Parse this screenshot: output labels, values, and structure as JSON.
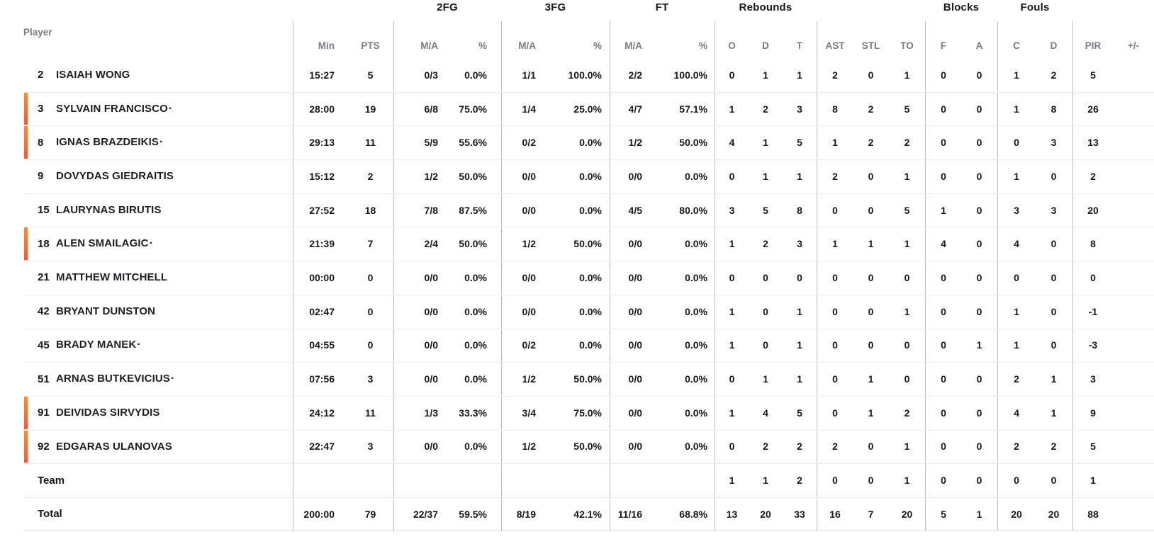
{
  "header": {
    "player_label": "Player",
    "groups": [
      "2FG",
      "3FG",
      "FT",
      "Rebounds",
      "Blocks",
      "Fouls"
    ],
    "cols": [
      "Min",
      "PTS",
      "M/A",
      "%",
      "M/A",
      "%",
      "M/A",
      "%",
      "O",
      "D",
      "T",
      "AST",
      "STL",
      "TO",
      "F",
      "A",
      "C",
      "D",
      "PIR",
      "+/-"
    ]
  },
  "starter_marker": "·",
  "players": [
    {
      "number": "2",
      "first": "ISAIAH",
      "last": "WONG",
      "starter": false,
      "on_court": false,
      "stats": [
        "15:27",
        "5",
        "0/3",
        "0.0%",
        "1/1",
        "100.0%",
        "2/2",
        "100.0%",
        "0",
        "1",
        "1",
        "2",
        "0",
        "1",
        "0",
        "0",
        "1",
        "2",
        "5",
        ""
      ]
    },
    {
      "number": "3",
      "first": "SYLVAIN",
      "last": "FRANCISCO",
      "starter": true,
      "on_court": true,
      "stats": [
        "28:00",
        "19",
        "6/8",
        "75.0%",
        "1/4",
        "25.0%",
        "4/7",
        "57.1%",
        "1",
        "2",
        "3",
        "8",
        "2",
        "5",
        "0",
        "0",
        "1",
        "8",
        "26",
        ""
      ]
    },
    {
      "number": "8",
      "first": "IGNAS",
      "last": "BRAZDEIKIS",
      "starter": true,
      "on_court": true,
      "stats": [
        "29:13",
        "11",
        "5/9",
        "55.6%",
        "0/2",
        "0.0%",
        "1/2",
        "50.0%",
        "4",
        "1",
        "5",
        "1",
        "2",
        "2",
        "0",
        "0",
        "0",
        "3",
        "13",
        ""
      ]
    },
    {
      "number": "9",
      "first": "DOVYDAS",
      "last": "GIEDRAITIS",
      "starter": false,
      "on_court": false,
      "stats": [
        "15:12",
        "2",
        "1/2",
        "50.0%",
        "0/0",
        "0.0%",
        "0/0",
        "0.0%",
        "0",
        "1",
        "1",
        "2",
        "0",
        "1",
        "0",
        "0",
        "1",
        "0",
        "2",
        ""
      ]
    },
    {
      "number": "15",
      "first": "LAURYNAS",
      "last": "BIRUTIS",
      "starter": false,
      "on_court": false,
      "stats": [
        "27:52",
        "18",
        "7/8",
        "87.5%",
        "0/0",
        "0.0%",
        "4/5",
        "80.0%",
        "3",
        "5",
        "8",
        "0",
        "0",
        "5",
        "1",
        "0",
        "3",
        "3",
        "20",
        ""
      ]
    },
    {
      "number": "18",
      "first": "ALEN",
      "last": "SMAILAGIC",
      "starter": true,
      "on_court": true,
      "stats": [
        "21:39",
        "7",
        "2/4",
        "50.0%",
        "1/2",
        "50.0%",
        "0/0",
        "0.0%",
        "1",
        "2",
        "3",
        "1",
        "1",
        "1",
        "4",
        "0",
        "4",
        "0",
        "8",
        ""
      ]
    },
    {
      "number": "21",
      "first": "MATTHEW",
      "last": "MITCHELL",
      "starter": false,
      "on_court": false,
      "stats": [
        "00:00",
        "0",
        "0/0",
        "0.0%",
        "0/0",
        "0.0%",
        "0/0",
        "0.0%",
        "0",
        "0",
        "0",
        "0",
        "0",
        "0",
        "0",
        "0",
        "0",
        "0",
        "0",
        ""
      ]
    },
    {
      "number": "42",
      "first": "BRYANT",
      "last": "DUNSTON",
      "starter": false,
      "on_court": false,
      "stats": [
        "02:47",
        "0",
        "0/0",
        "0.0%",
        "0/0",
        "0.0%",
        "0/0",
        "0.0%",
        "1",
        "0",
        "1",
        "0",
        "0",
        "1",
        "0",
        "0",
        "1",
        "0",
        "-1",
        ""
      ]
    },
    {
      "number": "45",
      "first": "BRADY",
      "last": "MANEK",
      "starter": true,
      "on_court": false,
      "stats": [
        "04:55",
        "0",
        "0/0",
        "0.0%",
        "0/2",
        "0.0%",
        "0/0",
        "0.0%",
        "1",
        "0",
        "1",
        "0",
        "0",
        "0",
        "0",
        "1",
        "1",
        "0",
        "-3",
        ""
      ]
    },
    {
      "number": "51",
      "first": "ARNAS",
      "last": "BUTKEVICIUS",
      "starter": true,
      "on_court": false,
      "stats": [
        "07:56",
        "3",
        "0/0",
        "0.0%",
        "1/2",
        "50.0%",
        "0/0",
        "0.0%",
        "0",
        "1",
        "1",
        "0",
        "1",
        "0",
        "0",
        "0",
        "2",
        "1",
        "3",
        ""
      ]
    },
    {
      "number": "91",
      "first": "DEIVIDAS",
      "last": "SIRVYDIS",
      "starter": false,
      "on_court": true,
      "stats": [
        "24:12",
        "11",
        "1/3",
        "33.3%",
        "3/4",
        "75.0%",
        "0/0",
        "0.0%",
        "1",
        "4",
        "5",
        "0",
        "1",
        "2",
        "0",
        "0",
        "4",
        "1",
        "9",
        ""
      ]
    },
    {
      "number": "92",
      "first": "EDGARAS",
      "last": "ULANOVAS",
      "starter": false,
      "on_court": true,
      "stats": [
        "22:47",
        "3",
        "0/0",
        "0.0%",
        "1/2",
        "50.0%",
        "0/0",
        "0.0%",
        "0",
        "2",
        "2",
        "2",
        "0",
        "1",
        "0",
        "0",
        "2",
        "2",
        "5",
        ""
      ]
    }
  ],
  "team_row": {
    "label": "Team",
    "stats": [
      "",
      "",
      "",
      "",
      "",
      "",
      "",
      "",
      "1",
      "1",
      "2",
      "0",
      "0",
      "1",
      "0",
      "0",
      "0",
      "0",
      "1",
      ""
    ]
  },
  "total_row": {
    "label": "Total",
    "stats": [
      "200:00",
      "79",
      "22/37",
      "59.5%",
      "8/19",
      "42.1%",
      "11/16",
      "68.8%",
      "13",
      "20",
      "33",
      "16",
      "7",
      "20",
      "5",
      "1",
      "20",
      "20",
      "88",
      ""
    ]
  },
  "colors": {
    "accent_bar_top": "#f78e2e",
    "accent_bar_bottom": "#f4573c",
    "text_dark": "#17171d",
    "text_gray": "#7b7b83",
    "vertical_line": "#bcbcc0",
    "row_line": "#ededef"
  }
}
